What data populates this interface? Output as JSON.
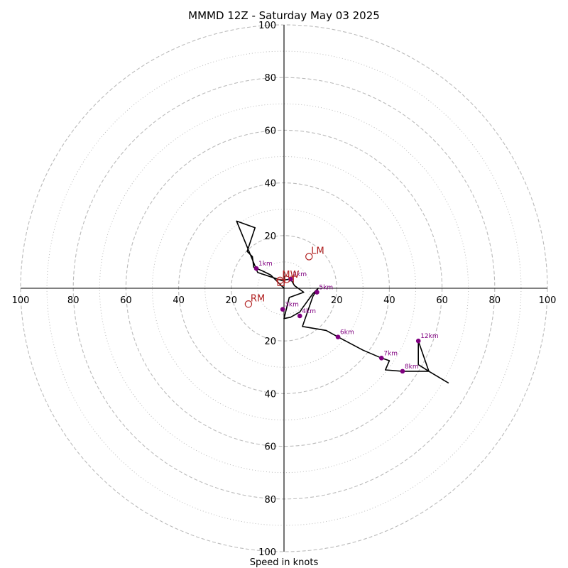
{
  "chart_data": {
    "type": "hodograph",
    "title": "MMMD 12Z - Saturday May 03 2025",
    "xlabel": "Speed in knots",
    "units": "knots",
    "range": 100,
    "major_rings": [
      20,
      40,
      60,
      80,
      100
    ],
    "minor_rings": [
      10,
      30,
      50,
      70,
      90
    ],
    "tick_labels": {
      "x": [
        "100",
        "80",
        "60",
        "40",
        "20",
        "20",
        "40",
        "60",
        "80",
        "100"
      ],
      "y": [
        "100",
        "80",
        "60",
        "40",
        "20",
        "20",
        "40",
        "60",
        "80",
        "100"
      ]
    },
    "colors": {
      "trace": "#000000",
      "height_markers": "#800080",
      "motion_markers": "#b22222",
      "rings": "#bbbbbb"
    },
    "trace": [
      [
        0,
        0
      ],
      [
        -0.5,
        0.5
      ],
      [
        -5,
        5
      ],
      [
        -8,
        6.5
      ],
      [
        -11.5,
        8
      ],
      [
        -12,
        12
      ],
      [
        -14,
        14
      ],
      [
        -11,
        23
      ],
      [
        -18,
        25.5
      ],
      [
        -10,
        6
      ],
      [
        -1,
        3
      ],
      [
        2.5,
        3.5
      ],
      [
        4,
        1
      ],
      [
        7.5,
        -1.5
      ],
      [
        2,
        -3.5
      ],
      [
        0,
        -11.5
      ],
      [
        2.5,
        -11
      ],
      [
        6,
        -9
      ],
      [
        7,
        -7.5
      ],
      [
        11,
        -2
      ],
      [
        13,
        0
      ],
      [
        11,
        -3
      ],
      [
        7,
        -14.5
      ],
      [
        16,
        -16
      ],
      [
        20.5,
        -18.5
      ],
      [
        30,
        -23.5
      ],
      [
        37,
        -26.5
      ],
      [
        40,
        -27.5
      ],
      [
        38.5,
        -31
      ],
      [
        45,
        -31.5
      ],
      [
        55,
        -31.5
      ],
      [
        51,
        -29
      ],
      [
        51,
        -20
      ],
      [
        55,
        -31.5
      ],
      [
        62.5,
        -36
      ]
    ],
    "height_markers": [
      {
        "label": "1km",
        "u": -10.5,
        "v": 7.5
      },
      {
        "label": "2km",
        "u": 2.5,
        "v": 3.5
      },
      {
        "label": "3km",
        "u": -0.5,
        "v": -8
      },
      {
        "label": "4km",
        "u": 6,
        "v": -10.5
      },
      {
        "label": "5km",
        "u": 12.5,
        "v": -1.5
      },
      {
        "label": "6km",
        "u": 20.5,
        "v": -18.5
      },
      {
        "label": "7km",
        "u": 37,
        "v": -26.5
      },
      {
        "label": "8km",
        "u": 45,
        "v": -31.5
      },
      {
        "label": "12km",
        "u": 51,
        "v": -20
      }
    ],
    "motion_markers": [
      {
        "label": "LM",
        "u": 9.5,
        "v": 12
      },
      {
        "label": "RM",
        "u": -13.5,
        "v": -6
      },
      {
        "label": "MW",
        "u": -1.5,
        "v": 3
      },
      {
        "label": "DT",
        "u": -1,
        "v": 1
      }
    ]
  }
}
